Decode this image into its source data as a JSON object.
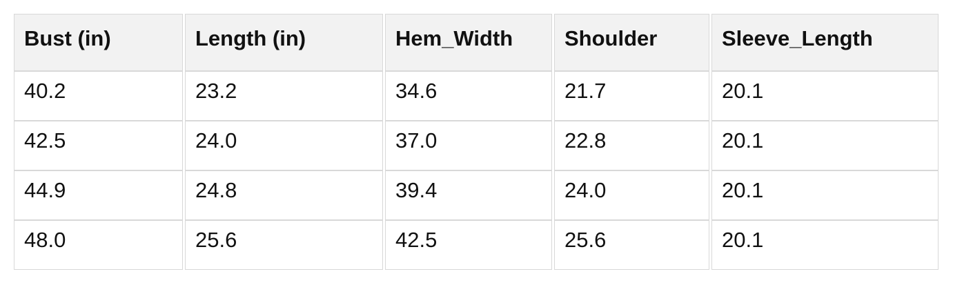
{
  "chart_data": {
    "type": "table",
    "title": "",
    "columns": [
      "Bust (in)",
      "Length (in)",
      "Hem_Width",
      "Shoulder",
      "Sleeve_Length"
    ],
    "rows": [
      [
        "40.2",
        "23.2",
        "34.6",
        "21.7",
        "20.1"
      ],
      [
        "42.5",
        "24.0",
        "37.0",
        "22.8",
        "20.1"
      ],
      [
        "44.9",
        "24.8",
        "39.4",
        "24.0",
        "20.1"
      ],
      [
        "48.0",
        "25.6",
        "42.5",
        "25.6",
        "20.1"
      ]
    ]
  },
  "colors": {
    "header_bg": "#f2f2f2",
    "border": "#d8d8d8",
    "text": "#111111",
    "background": "#ffffff"
  }
}
